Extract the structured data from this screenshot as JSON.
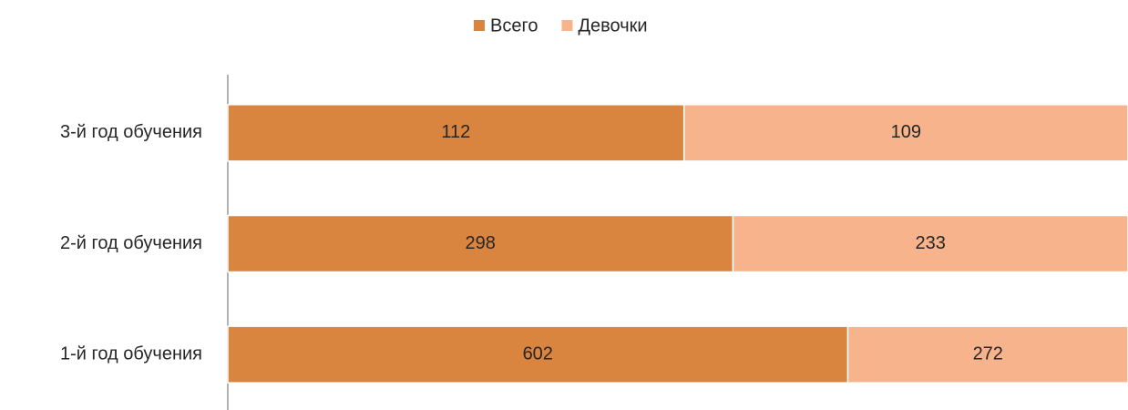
{
  "chart_data": {
    "type": "bar",
    "orientation": "horizontal",
    "stacked": "percent",
    "categories": [
      "3-й год обучения",
      "2-й год обучения",
      "1-й год обучения"
    ],
    "series": [
      {
        "name": "Всего",
        "color": "#d9843f",
        "values": [
          112,
          298,
          602
        ]
      },
      {
        "name": "Девочки",
        "color": "#f7b48c",
        "values": [
          109,
          233,
          272
        ]
      }
    ],
    "legend": "top"
  }
}
